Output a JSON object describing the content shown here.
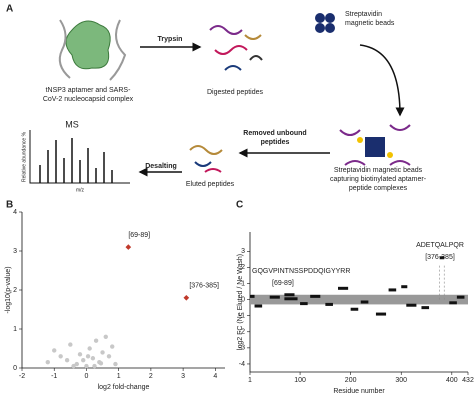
{
  "panel_a": {
    "label": "A",
    "step1": "Trypsin",
    "beads_lines": [
      "Streptavidin",
      "magnetic beads"
    ],
    "complex_lines": [
      "tNSP3 aptamer and SARS-",
      "CoV-2 nucleocapsid complex"
    ],
    "digested": "Digested peptides",
    "captured_lines": [
      "Streptavidin magnetic beads",
      "capturing biotinylated aptamer-",
      "peptide complexes"
    ],
    "removed_lines": [
      "Removed unbound",
      "peptides"
    ],
    "eluted": "Eluted peptides",
    "desalting": "Desalting",
    "ms_title": "MS",
    "ms_ylabel": "Relative abundance %",
    "ms_xlabel": "m/z"
  },
  "chart_data": [
    {
      "type": "scatter",
      "panel_label": "B",
      "x_label": "log2 fold-change",
      "y_label": "-log10(p-value)",
      "xlim": [
        -2,
        4.3
      ],
      "ylim": [
        0,
        4
      ],
      "xticks": [
        -2,
        -1,
        0,
        1,
        2,
        3,
        4
      ],
      "yticks": [
        0,
        1,
        2,
        3,
        4
      ],
      "points": {
        "color": "#c8c8c8",
        "x": [
          -1.2,
          -1,
          -0.8,
          -0.6,
          -0.5,
          -0.3,
          -0.2,
          0,
          0.1,
          0.2,
          0.3,
          0.4,
          0.5,
          0.6,
          0.7,
          0.8,
          0.9,
          -0.1,
          0.25,
          0.45,
          0.05,
          -0.4
        ],
        "y": [
          0.15,
          0.45,
          0.3,
          0.2,
          0.6,
          0.1,
          0.35,
          0.05,
          0.5,
          0.25,
          0.7,
          0.15,
          0.4,
          0.8,
          0.3,
          0.55,
          0.1,
          0.2,
          0.05,
          0.12,
          0.3,
          0.05
        ]
      },
      "highlight": {
        "color": "#c0392b",
        "x": [
          1.3,
          3.1
        ],
        "y": [
          3.1,
          1.8
        ],
        "labels": [
          "[69-89]",
          "[376-385]"
        ]
      }
    },
    {
      "type": "segments",
      "panel_label": "C",
      "x_label": "Residue number",
      "y_label": "log2 FC (Ne Eluted / Ne Wash)",
      "xlim": [
        1,
        432
      ],
      "ylim": [
        -4.5,
        4.2
      ],
      "xticks": [
        1,
        100,
        200,
        300,
        400,
        432
      ],
      "yticks": [
        -4,
        -3,
        -2,
        -1,
        0,
        1,
        2,
        3
      ],
      "band_color": "#999",
      "color": "#111",
      "start": [
        1,
        10,
        40,
        69,
        69,
        100,
        120,
        150,
        175,
        200,
        220,
        250,
        275,
        300,
        310,
        340,
        376,
        395,
        410
      ],
      "end": [
        10,
        25,
        60,
        89,
        95,
        115,
        140,
        165,
        195,
        215,
        235,
        270,
        290,
        312,
        330,
        355,
        385,
        410,
        425
      ],
      "values": [
        0.2,
        -0.4,
        0.15,
        0.3,
        0.05,
        -0.25,
        0.2,
        -0.3,
        0.7,
        -0.6,
        -0.15,
        -0.9,
        0.6,
        0.8,
        -0.35,
        -0.5,
        2.6,
        -0.2,
        0.15
      ],
      "annotations": [
        {
          "text": "GQGVPINTNSSPDDQIGYYRR",
          "range": "[69-89]"
        },
        {
          "text": "ADETQALPQR",
          "range": "[376-385]"
        }
      ]
    }
  ]
}
